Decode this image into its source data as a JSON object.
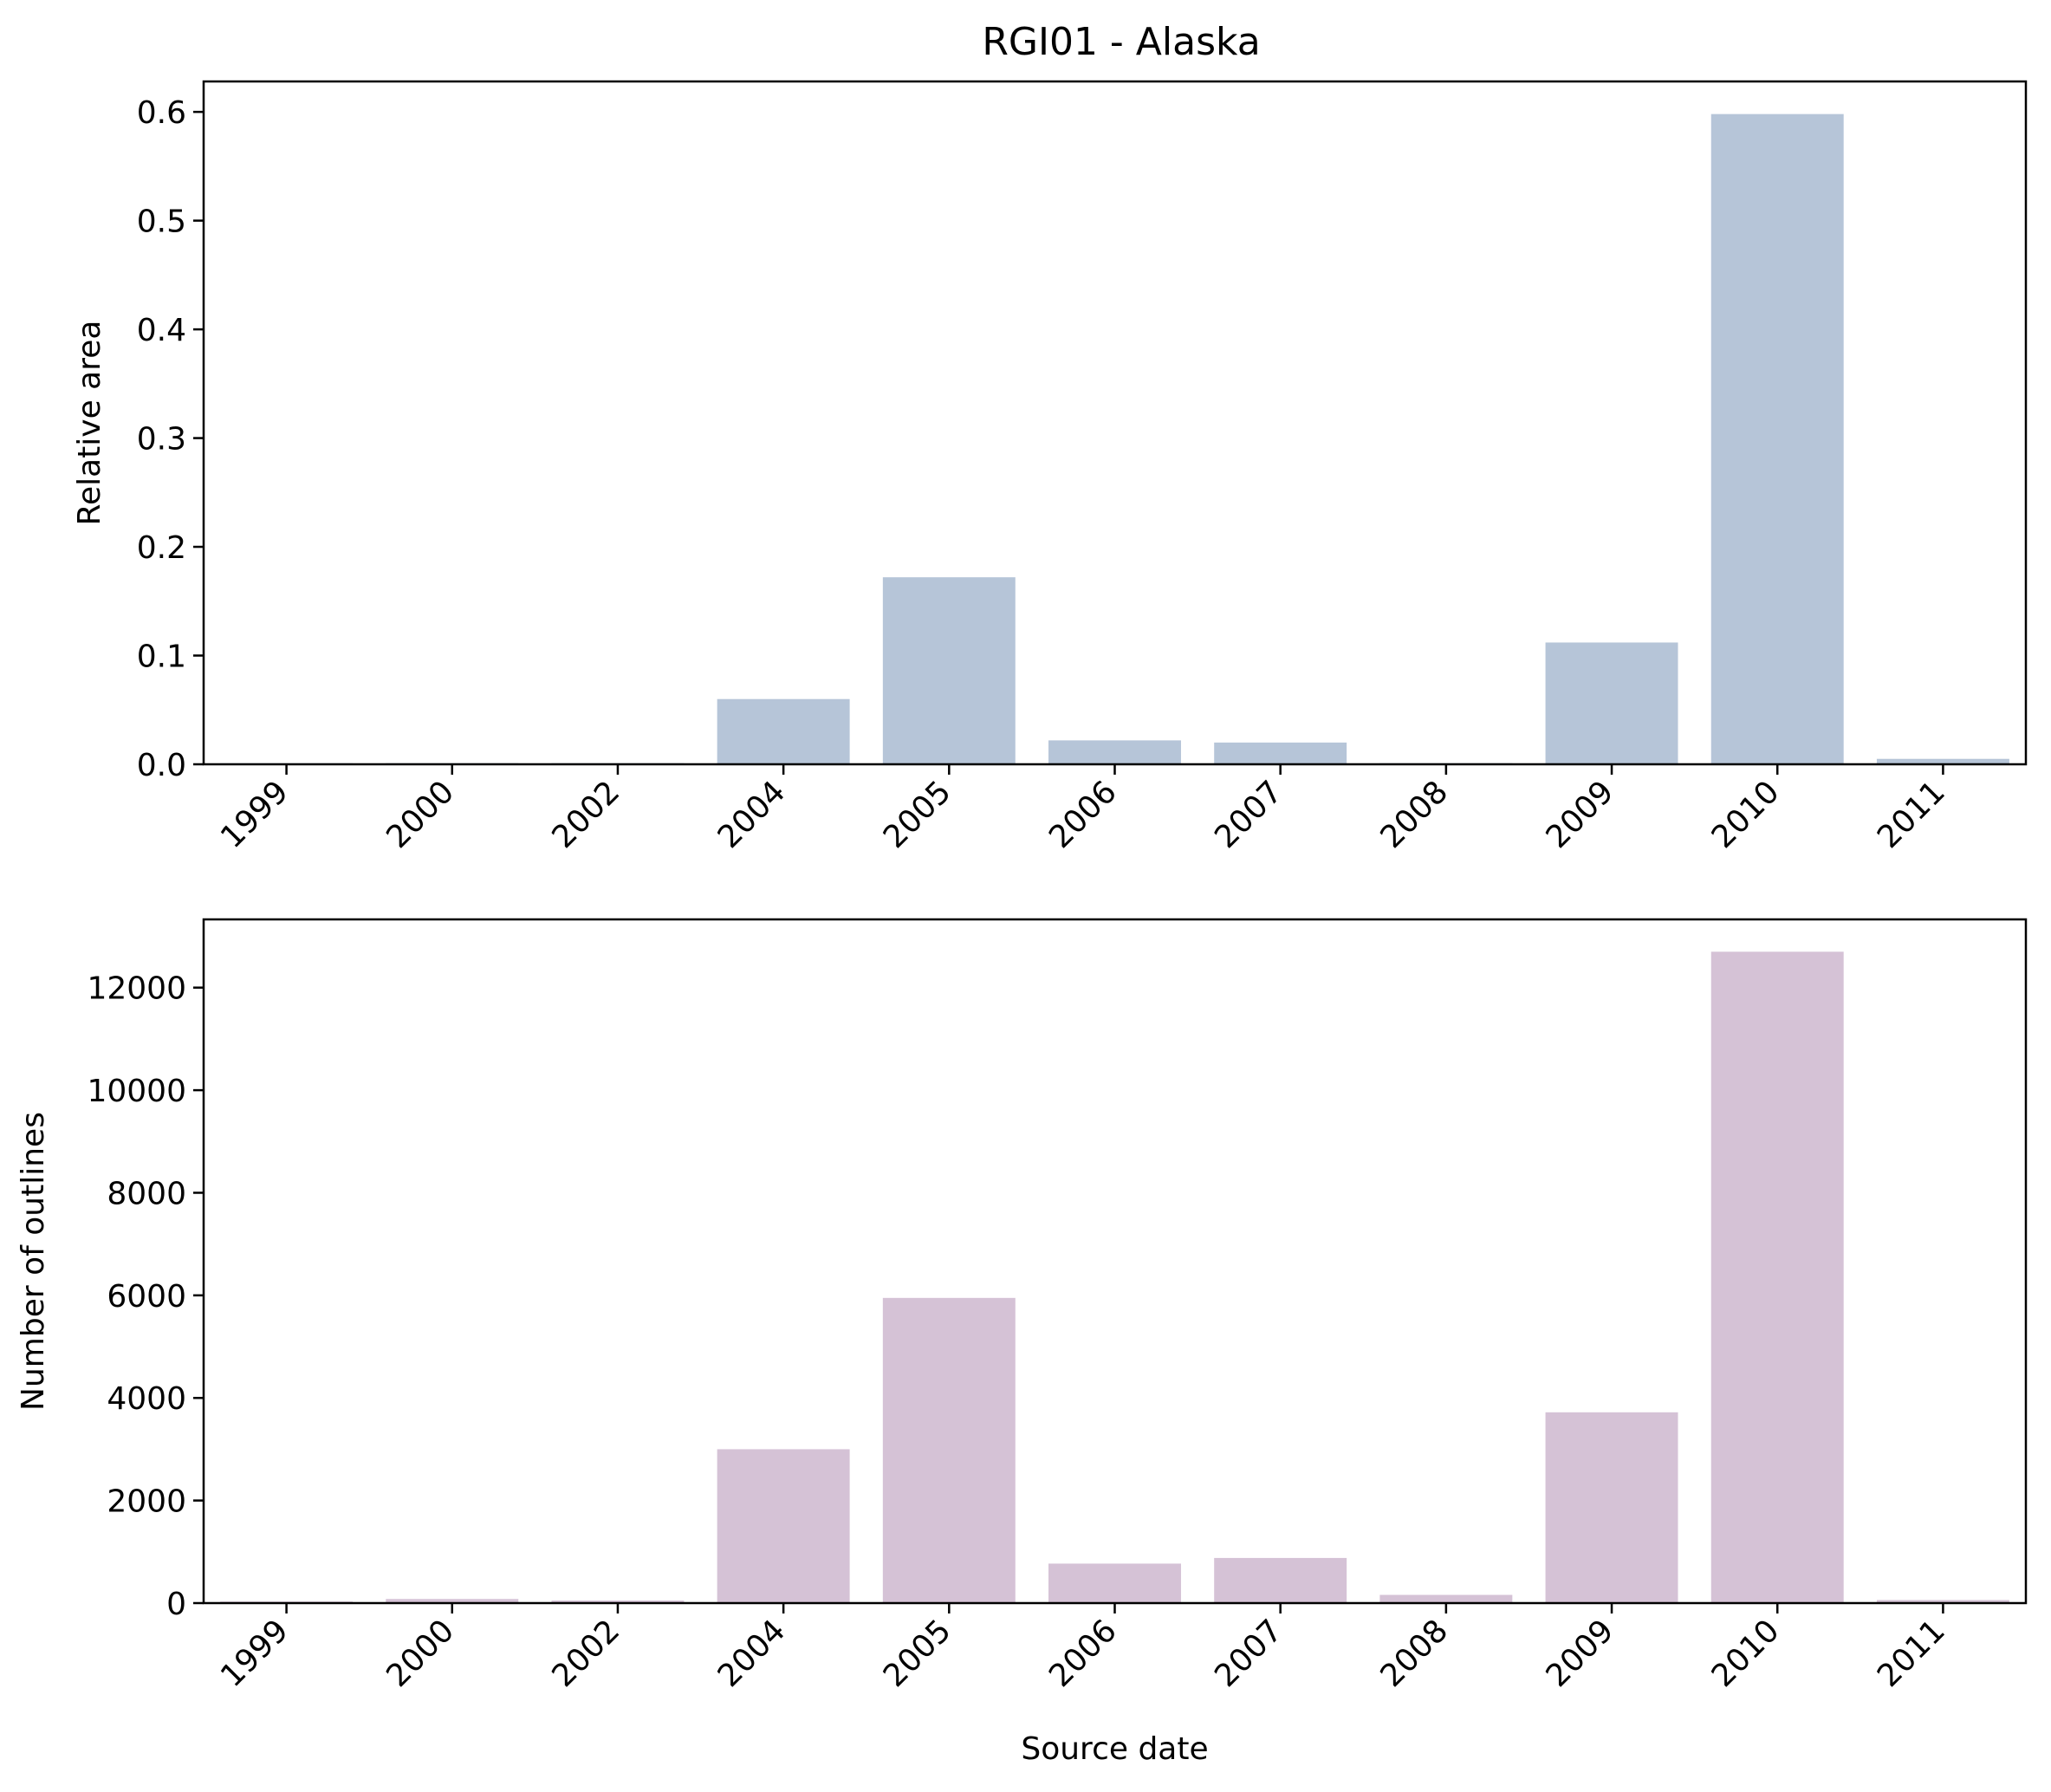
{
  "figure_title": "RGI01 - Alaska",
  "chart_data": [
    {
      "type": "bar",
      "title": "RGI01 - Alaska",
      "xlabel": "",
      "ylabel": "Relative area",
      "categories": [
        "1999",
        "2000",
        "2002",
        "2004",
        "2005",
        "2006",
        "2007",
        "2008",
        "2009",
        "2010",
        "2011"
      ],
      "values": [
        0.0005,
        0.001,
        0.001,
        0.06,
        0.172,
        0.022,
        0.02,
        0.001,
        0.112,
        0.598,
        0.005
      ],
      "yticks": [
        0.0,
        0.1,
        0.2,
        0.3,
        0.4,
        0.5,
        0.6
      ],
      "ytick_labels": [
        "0.0",
        "0.1",
        "0.2",
        "0.3",
        "0.4",
        "0.5",
        "0.6"
      ],
      "ylim": [
        0,
        0.628
      ],
      "color": "#b6c5d8",
      "grid": false,
      "legend": "none"
    },
    {
      "type": "bar",
      "title": "",
      "xlabel": "Source date",
      "ylabel": "Number of outlines",
      "categories": [
        "1999",
        "2000",
        "2002",
        "2004",
        "2005",
        "2006",
        "2007",
        "2008",
        "2009",
        "2010",
        "2011"
      ],
      "values": [
        30,
        80,
        50,
        3000,
        5950,
        770,
        880,
        160,
        3720,
        12700,
        60
      ],
      "yticks": [
        0,
        2000,
        4000,
        6000,
        8000,
        10000,
        12000
      ],
      "ytick_labels": [
        "0",
        "2000",
        "4000",
        "6000",
        "8000",
        "10000",
        "12000"
      ],
      "ylim": [
        0,
        13330
      ],
      "color": "#d5c2d6",
      "grid": false,
      "legend": "none"
    }
  ]
}
